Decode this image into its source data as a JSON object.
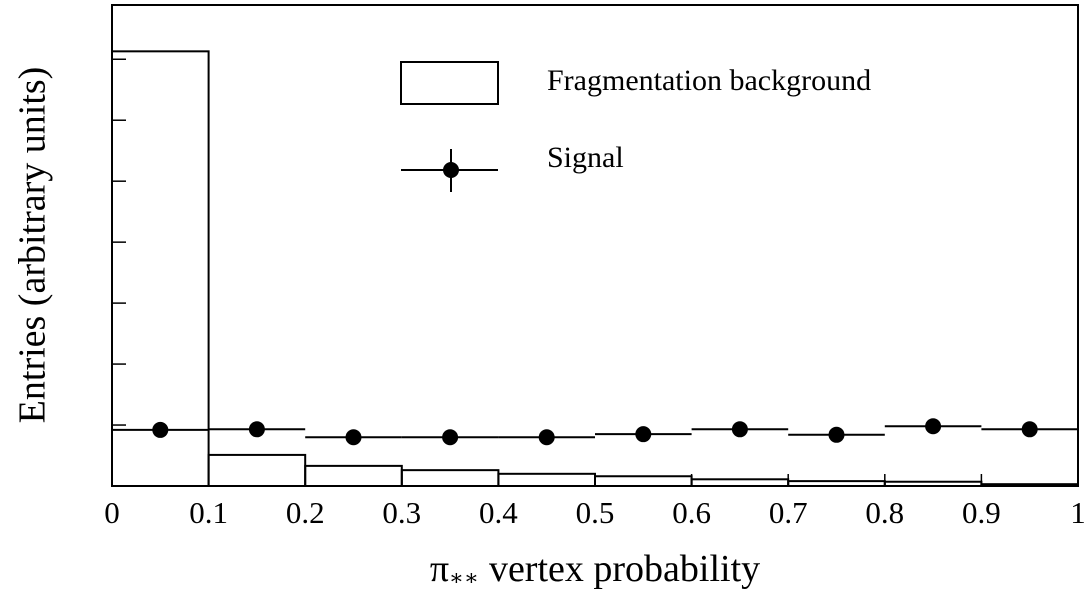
{
  "chart_data": {
    "type": "histogram",
    "ylabel": "Entries (arbitrary units)",
    "xlabel": {
      "symbol": "π",
      "subscript": "∗∗",
      "text": "vertex probability"
    },
    "bins": [
      0,
      0.1,
      0.2,
      0.3,
      0.4,
      0.5,
      0.6,
      0.7,
      0.8,
      0.9,
      1
    ],
    "xlim": [
      0,
      1
    ],
    "xticks": [
      0,
      0.1,
      0.2,
      0.3,
      0.4,
      0.5,
      0.6,
      0.7,
      0.8,
      0.9,
      1
    ],
    "ylim": [
      0,
      7.89
    ],
    "yticks": [
      1,
      2,
      3,
      4,
      5,
      6,
      7
    ],
    "series": [
      {
        "name": "Fragmentation background",
        "style": "step",
        "color": "#000000",
        "values": [
          7.13,
          0.51,
          0.33,
          0.26,
          0.2,
          0.16,
          0.11,
          0.08,
          0.07,
          0.03
        ]
      },
      {
        "name": "Signal",
        "style": "points",
        "color": "#000000",
        "values": [
          0.92,
          0.93,
          0.8,
          0.8,
          0.8,
          0.85,
          0.93,
          0.84,
          0.98,
          0.93
        ]
      }
    ]
  }
}
